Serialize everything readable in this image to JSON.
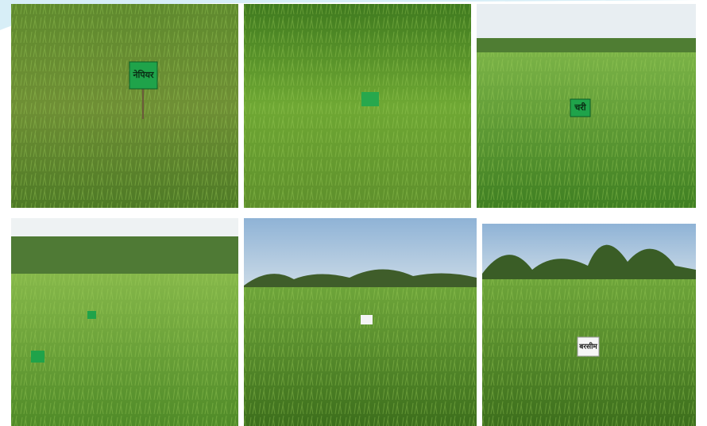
{
  "signs": [
    "नेपियर",
    "चरी",
    "बरसीम"
  ]
}
